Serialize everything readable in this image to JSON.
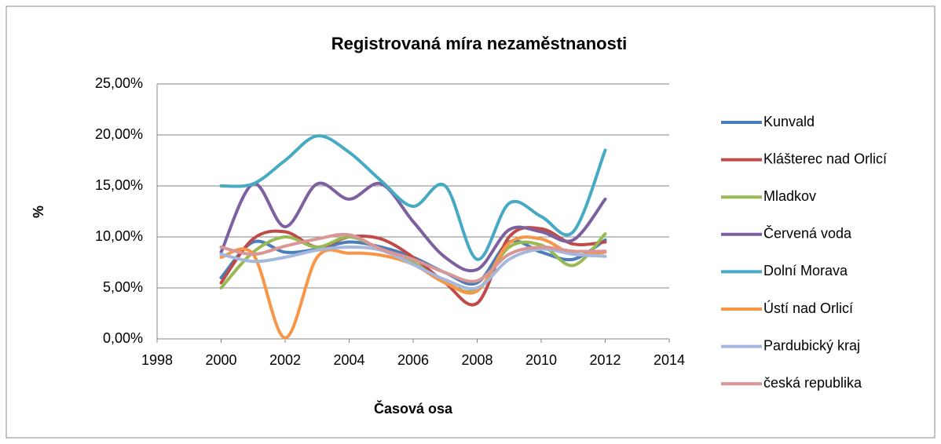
{
  "chart_data": {
    "type": "line",
    "title": "Registrovaná míra nezaměstnanosti",
    "x_label": "Časová osa",
    "y_label": "%",
    "x": [
      2000,
      2001,
      2002,
      2003,
      2004,
      2005,
      2006,
      2007,
      2008,
      2009,
      2010,
      2011,
      2012
    ],
    "xlim": [
      1998,
      2014
    ],
    "xticks": [
      1998,
      2000,
      2002,
      2004,
      2006,
      2008,
      2010,
      2012,
      2014
    ],
    "ylim": [
      0,
      25
    ],
    "yticks": [
      {
        "value": 0,
        "label": "0,00%"
      },
      {
        "value": 5,
        "label": "5,00%"
      },
      {
        "value": 10,
        "label": "10,00%"
      },
      {
        "value": 15,
        "label": "15,00%"
      },
      {
        "value": 20,
        "label": "20,00%"
      },
      {
        "value": 25,
        "label": "25,00%"
      }
    ],
    "grid": true,
    "smooth": true,
    "legend": "right",
    "series": [
      {
        "name": "Kunvald",
        "color": "#4a7ebb",
        "values": [
          6.0,
          9.5,
          8.5,
          8.8,
          9.5,
          9.0,
          8.0,
          6.5,
          5.5,
          9.5,
          8.5,
          7.8,
          9.7
        ]
      },
      {
        "name": "Klášterec nad Orlicí",
        "color": "#be4b48",
        "values": [
          5.5,
          9.8,
          10.5,
          9.0,
          10.0,
          9.8,
          8.0,
          5.5,
          3.5,
          10.0,
          10.8,
          9.3,
          9.5
        ]
      },
      {
        "name": "Mladkov",
        "color": "#98b954",
        "values": [
          5.0,
          8.5,
          10.0,
          9.0,
          10.0,
          8.8,
          7.5,
          5.5,
          4.8,
          9.0,
          9.2,
          7.2,
          10.3
        ]
      },
      {
        "name": "Červená voda",
        "color": "#7d60a0",
        "values": [
          8.5,
          15.2,
          11.0,
          15.2,
          13.7,
          15.2,
          11.5,
          8.0,
          6.8,
          10.7,
          10.5,
          9.7,
          13.7
        ]
      },
      {
        "name": "Dolní Morava",
        "color": "#46aac5",
        "values": [
          15.0,
          15.2,
          17.5,
          19.9,
          18.3,
          15.5,
          13.0,
          15.0,
          7.8,
          13.3,
          12.0,
          10.5,
          18.5
        ]
      },
      {
        "name": "Ústí nad Orlicí",
        "color": "#f79646",
        "values": [
          8.0,
          8.3,
          0.1,
          8.0,
          8.4,
          8.2,
          7.3,
          5.5,
          4.7,
          9.4,
          9.8,
          8.3,
          8.5
        ]
      },
      {
        "name": "Pardubický kraj",
        "color": "#a4b7dd",
        "values": [
          8.3,
          7.6,
          8.0,
          8.7,
          9.0,
          8.7,
          7.3,
          5.8,
          5.0,
          7.8,
          8.8,
          8.3,
          8.1
        ]
      },
      {
        "name": "česká republika",
        "color": "#d99694",
        "values": [
          9.0,
          8.3,
          9.1,
          9.8,
          10.2,
          8.8,
          7.8,
          6.5,
          5.7,
          8.3,
          9.0,
          8.6,
          8.6
        ]
      }
    ]
  }
}
